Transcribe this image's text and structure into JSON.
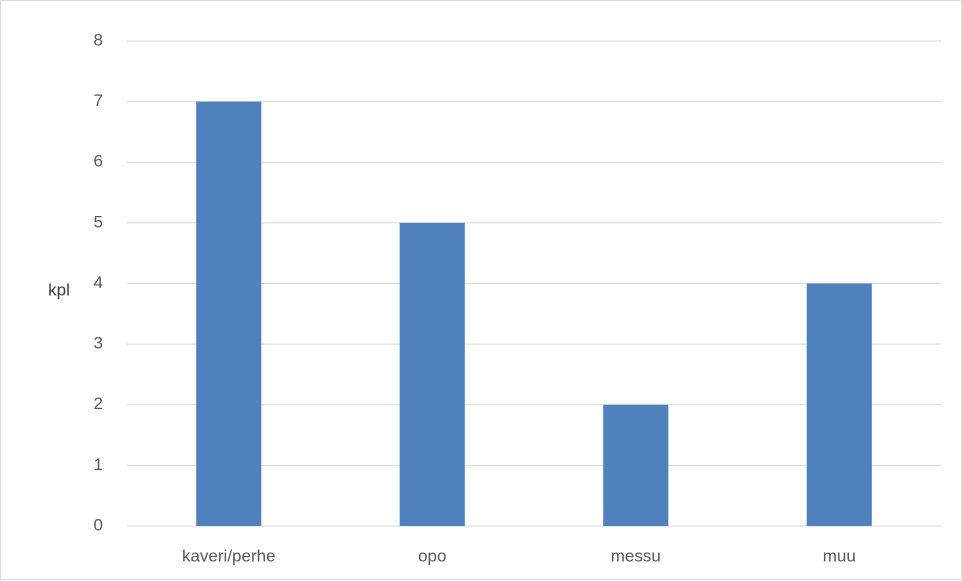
{
  "chart_data": {
    "type": "bar",
    "categories": [
      "kaveri/perhe",
      "opo",
      "messu",
      "muu"
    ],
    "values": [
      7,
      5,
      2,
      4
    ],
    "ylabel": "kpl",
    "ylim": [
      0,
      8
    ],
    "yticks": [
      0,
      1,
      2,
      3,
      4,
      5,
      6,
      7,
      8
    ],
    "grid": true,
    "bar_color": "#4f81bd"
  }
}
